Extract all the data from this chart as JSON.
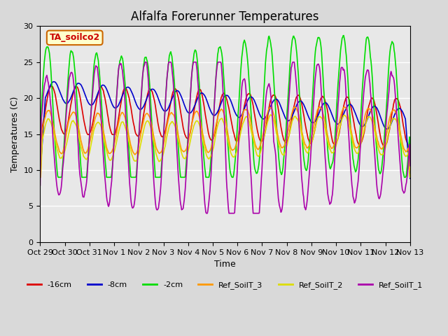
{
  "title": "Alfalfa Forerunner Temperatures",
  "xlabel": "Time",
  "ylabel": "Temperatures (C)",
  "ylim": [
    0,
    30
  ],
  "background_color": "#d9d9d9",
  "plot_bg_color": "#e8e8e8",
  "annotation_text": "TA_soilco2",
  "annotation_color": "#cc0000",
  "annotation_bg": "#ffffcc",
  "annotation_border": "#cc6600",
  "series": [
    {
      "label": "-16cm",
      "color": "#dd0000"
    },
    {
      "label": "-8cm",
      "color": "#0000cc"
    },
    {
      "label": "-2cm",
      "color": "#00dd00"
    },
    {
      "label": "Ref_SoilT_3",
      "color": "#ff9900"
    },
    {
      "label": "Ref_SoilT_2",
      "color": "#dddd00"
    },
    {
      "label": "Ref_SoilT_1",
      "color": "#aa00aa"
    }
  ],
  "xtick_labels": [
    "Oct 29",
    "Oct 30",
    "Oct 31",
    "Nov 1",
    "Nov 2",
    "Nov 3",
    "Nov 4",
    "Nov 5",
    "Nov 6",
    "Nov 7",
    "Nov 8",
    "Nov 9",
    "Nov 10",
    "Nov 11",
    "Nov 12",
    "Nov 13"
  ],
  "xtick_positions": [
    0,
    1,
    2,
    3,
    4,
    5,
    6,
    7,
    8,
    9,
    10,
    11,
    12,
    13,
    14,
    15
  ],
  "ytick_positions": [
    0,
    5,
    10,
    15,
    20,
    25,
    30
  ],
  "grid_color": "#ffffff",
  "linewidth": 1.2,
  "title_fontsize": 12,
  "axis_fontsize": 9,
  "tick_fontsize": 8
}
